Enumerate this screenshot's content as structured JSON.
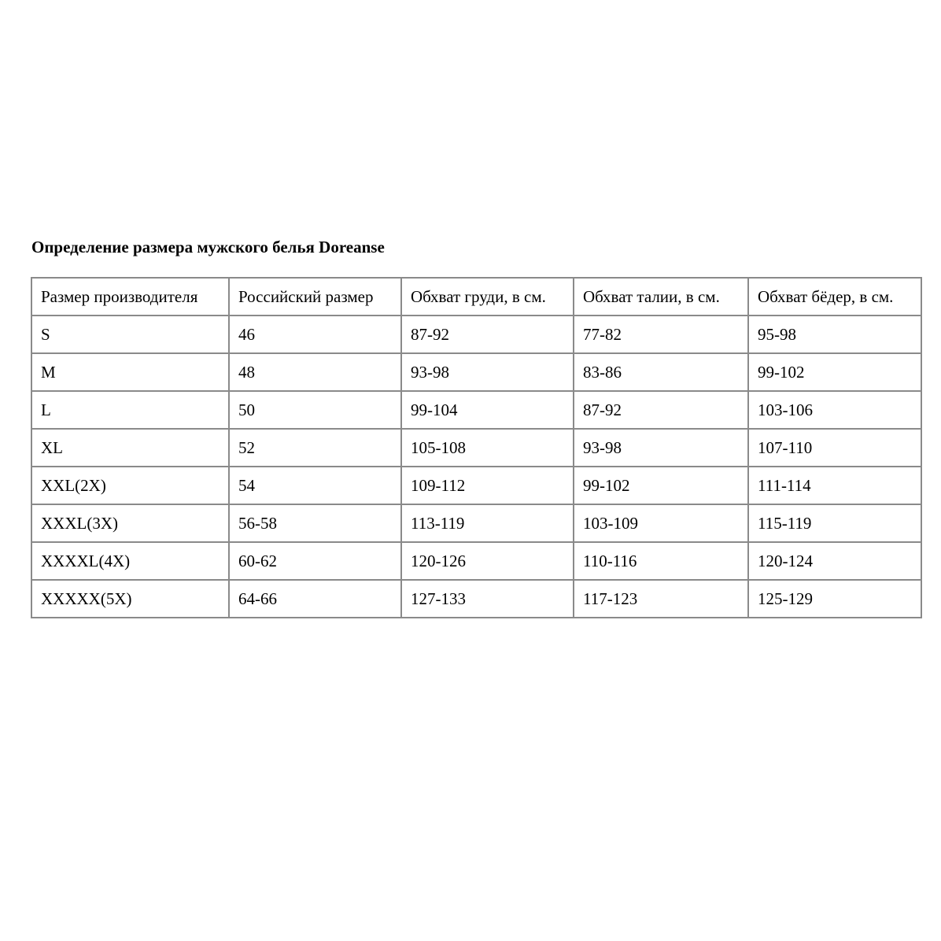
{
  "title": "Определение размера мужского белья Doreanse",
  "table": {
    "headers": [
      "Размер производителя",
      "Российский размер",
      "Обхват груди, в см.",
      "Обхват талии, в см.",
      "Обхват бёдер, в см."
    ],
    "rows": [
      [
        "S",
        "46",
        "87-92",
        "77-82",
        "95-98"
      ],
      [
        "M",
        "48",
        "93-98",
        "83-86",
        "99-102"
      ],
      [
        "L",
        "50",
        "99-104",
        "87-92",
        "103-106"
      ],
      [
        "XL",
        "52",
        "105-108",
        "93-98",
        "107-110"
      ],
      [
        "XXL(2X)",
        "54",
        "109-112",
        "99-102",
        "111-114"
      ],
      [
        "XXXL(3X)",
        "56-58",
        "113-119",
        "103-109",
        "115-119"
      ],
      [
        "XXXXL(4X)",
        "60-62",
        "120-126",
        "110-116",
        "120-124"
      ],
      [
        "XXXXX(5X)",
        "64-66",
        "127-133",
        "117-123",
        "125-129"
      ]
    ]
  }
}
